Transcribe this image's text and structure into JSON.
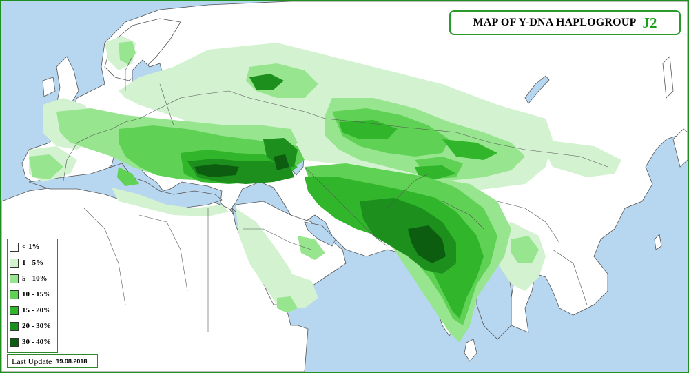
{
  "title": {
    "text": "MAP OF Y-DNA HAPLOGROUP",
    "code": "J2"
  },
  "legend": {
    "items": [
      {
        "label": "< 1%",
        "color": "#ffffff"
      },
      {
        "label": "1 - 5%",
        "color": "#d2f2d0"
      },
      {
        "label": "5 - 10%",
        "color": "#97e58f"
      },
      {
        "label": "10 - 15%",
        "color": "#5fd255"
      },
      {
        "label": "15 - 20%",
        "color": "#30b52b"
      },
      {
        "label": "20 - 30%",
        "color": "#1c8f1c"
      },
      {
        "label": "30 - 40%",
        "color": "#0d5d10"
      }
    ]
  },
  "last_update": {
    "label": "Last Update",
    "date": "19.08.2018"
  },
  "colors": {
    "sea": "#b7d6ef",
    "land": "#ffffff",
    "border": "#555555",
    "frame": "#1f8f1f"
  }
}
